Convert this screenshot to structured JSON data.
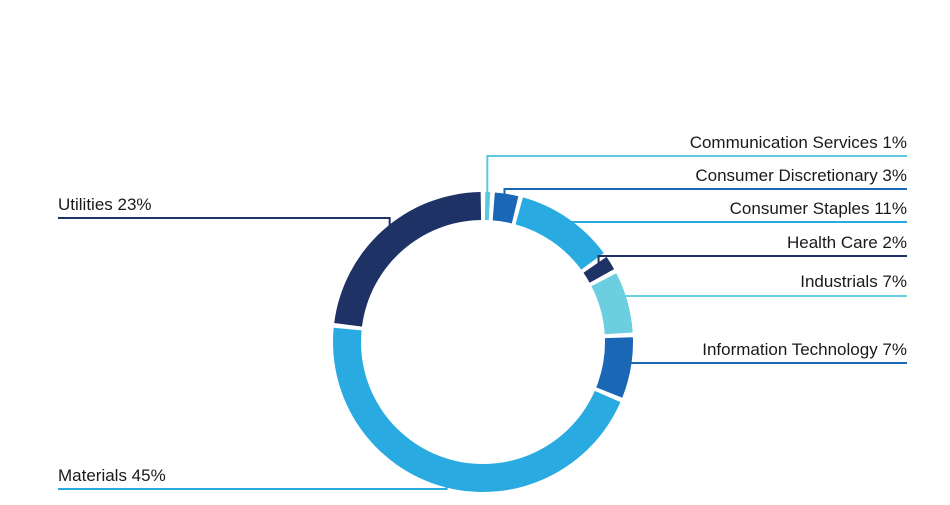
{
  "chart_data": {
    "type": "pie",
    "title": "",
    "legend": "none",
    "slices": [
      {
        "label": "Communication Services 1%",
        "name": "Communication Services",
        "value": 1,
        "color": "#5bc8dc"
      },
      {
        "label": "Consumer Discretionary 3%",
        "name": "Consumer Discretionary",
        "value": 3,
        "color": "#1a67b5"
      },
      {
        "label": "Consumer Staples 11%",
        "name": "Consumer Staples",
        "value": 11,
        "color": "#29abe2"
      },
      {
        "label": "Health Care 2%",
        "name": "Health Care",
        "value": 2,
        "color": "#1f3266"
      },
      {
        "label": "Industrials 7%",
        "name": "Industrials",
        "value": 7,
        "color": "#6ccfe0"
      },
      {
        "label": "Information Technology 7%",
        "name": "Information Technology",
        "value": 7,
        "color": "#1a67b5"
      },
      {
        "label": "Materials 45%",
        "name": "Materials",
        "value": 45,
        "color": "#29abe2"
      },
      {
        "label": "Utilities 23%",
        "name": "Utilities",
        "value": 23,
        "color": "#1f3266"
      }
    ]
  }
}
